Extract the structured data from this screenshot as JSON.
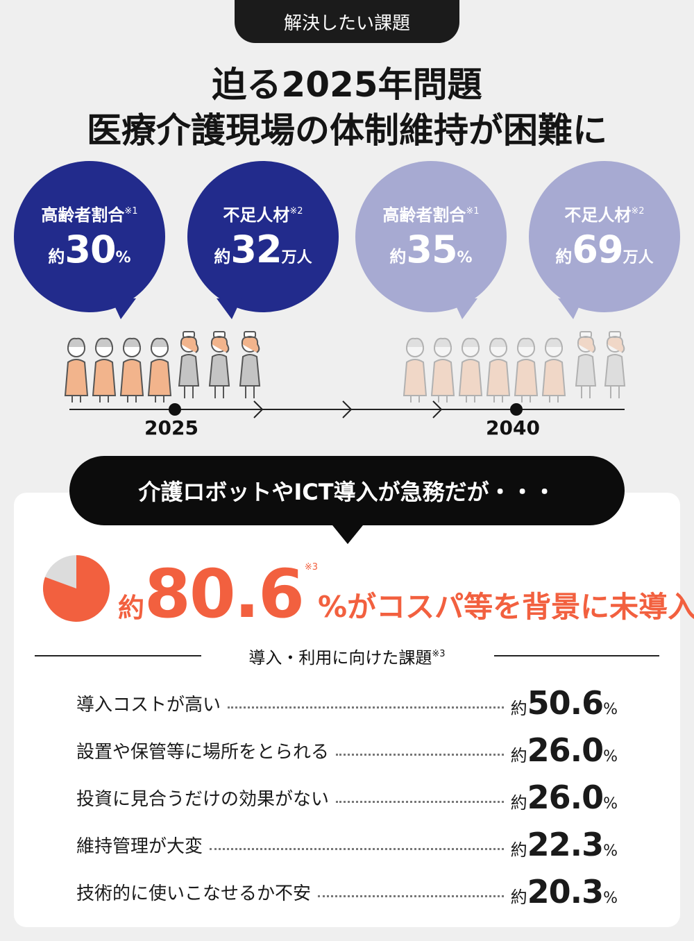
{
  "tag": "解決したい課題",
  "headline": {
    "line1": "迫る2025年問題",
    "line2": "医療介護現場の体制維持が困難に"
  },
  "bubbles": [
    {
      "label": "高齢者割合",
      "note": "※1",
      "prefix": "約",
      "value": "30",
      "unit": "%"
    },
    {
      "label": "不足人材",
      "note": "※2",
      "prefix": "約",
      "value": "32",
      "unit": "万人"
    },
    {
      "label": "高齢者割合",
      "note": "※1",
      "prefix": "約",
      "value": "35",
      "unit": "%"
    },
    {
      "label": "不足人材",
      "note": "※2",
      "prefix": "約",
      "value": "69",
      "unit": "万人"
    }
  ],
  "timeline": {
    "year_start": "2025",
    "year_end": "2040"
  },
  "colors": {
    "dark_bubble": "#222b8c",
    "light_bubble": "#a7aad2",
    "accent": "#f2603f",
    "elderly": "#f2b48c",
    "caregiver": "#c4c4c4"
  },
  "banner": "介護ロボットやICT導入が急務だが・・・",
  "highlight": {
    "prefix": "約",
    "value": "80.6",
    "note": "※3",
    "rest": "%がコスパ等を背景に未導入",
    "fraction": 0.806
  },
  "issues_heading": {
    "text": "導入・利用に向けた課題",
    "note": "※3"
  },
  "issues": [
    {
      "label": "導入コストが高い",
      "prefix": "約",
      "value": "50.6",
      "unit": "%"
    },
    {
      "label": "設置や保管等に場所をとられる",
      "prefix": "約",
      "value": "26.0",
      "unit": "%"
    },
    {
      "label": "投資に見合うだけの効果がない",
      "prefix": "約",
      "value": "26.0",
      "unit": "%"
    },
    {
      "label": "維持管理が大変",
      "prefix": "約",
      "value": "22.3",
      "unit": "%"
    },
    {
      "label": "技術的に使いこなせるか不安",
      "prefix": "約",
      "value": "20.3",
      "unit": "%"
    }
  ]
}
